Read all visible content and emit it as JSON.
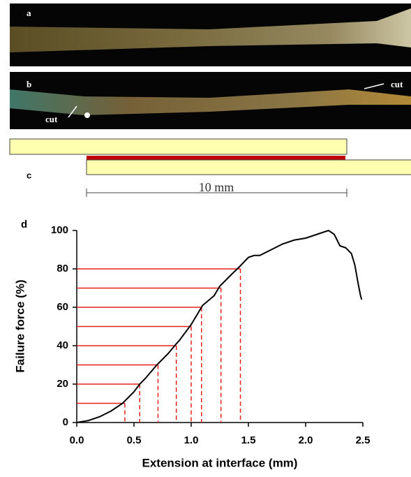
{
  "panels": {
    "a": "a",
    "b": "b",
    "cut_left": "cut",
    "cut_right": "cut",
    "c": "c",
    "scale": "10 mm",
    "d": "d"
  },
  "chart_data": {
    "type": "line",
    "xlabel": "Extension at interface (mm)",
    "ylabel": "Failure force (%)",
    "xlim": [
      0,
      2.5
    ],
    "ylim": [
      0,
      100
    ],
    "xticks": [
      {
        "value": 0,
        "label": "0.0"
      },
      {
        "value": 0.5,
        "label": "0.5"
      },
      {
        "value": 1,
        "label": "1.0"
      },
      {
        "value": 1.5,
        "label": "1.5"
      },
      {
        "value": 2,
        "label": "2.0"
      },
      {
        "value": 2.5,
        "label": "2.5"
      }
    ],
    "yticks": [
      0,
      20,
      40,
      60,
      80,
      100
    ],
    "series": [
      {
        "color": "#000000",
        "style": "line",
        "x": [
          0,
          0.1,
          0.2,
          0.3,
          0.4,
          0.5,
          0.55,
          0.6,
          0.7,
          0.8,
          0.87,
          0.9,
          1.0,
          1.1,
          1.2,
          1.25,
          1.35,
          1.42,
          1.5,
          1.55,
          1.6,
          1.7,
          1.8,
          1.9,
          2.0,
          2.1,
          2.15,
          2.2,
          2.25,
          2.3,
          2.35,
          2.4,
          2.43,
          2.46,
          2.48,
          2.49
        ],
        "values": [
          0,
          1,
          3,
          6,
          10,
          16,
          20,
          23,
          30,
          36,
          41,
          43,
          51,
          61,
          66,
          71,
          77,
          81,
          86,
          87,
          87,
          90,
          93,
          95,
          96,
          98,
          99,
          100,
          98,
          92,
          91,
          88,
          82,
          72,
          66,
          64
        ]
      },
      {
        "color": "#e8201c",
        "style": "droplines",
        "x": [
          0.42,
          0.55,
          0.71,
          0.87,
          1.0,
          1.09,
          1.26,
          1.43
        ],
        "values": [
          10,
          20,
          30,
          40,
          50,
          60,
          70,
          80
        ]
      }
    ]
  }
}
